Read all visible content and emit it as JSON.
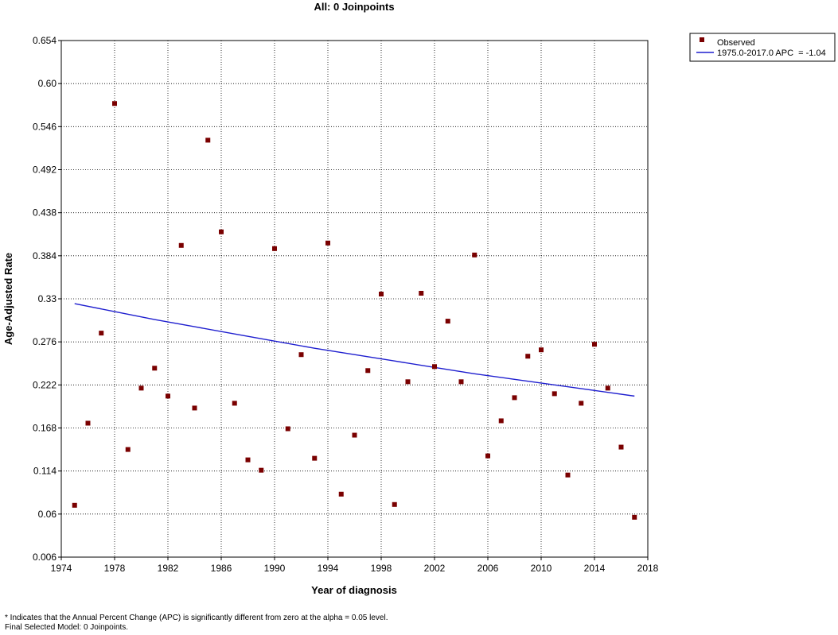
{
  "chart_data": {
    "type": "scatter",
    "title": "All: 0 Joinpoints",
    "xlabel": "Year of diagnosis",
    "ylabel": "Age-Adjusted Rate",
    "xlim": [
      1974,
      2018
    ],
    "ylim": [
      0.006,
      0.654
    ],
    "xticks": [
      "1974",
      "1978",
      "1982",
      "1986",
      "1990",
      "1994",
      "1998",
      "2002",
      "2006",
      "2010",
      "2014",
      "2018"
    ],
    "yticks": [
      "0.006",
      "0.06",
      "0.114",
      "0.168",
      "0.222",
      "0.276",
      "0.33",
      "0.384",
      "0.438",
      "0.492",
      "0.546",
      "0.60",
      "0.654"
    ],
    "grid": true,
    "legend_position": "top-right, outside plot",
    "series": [
      {
        "name": "Observed",
        "kind": "markers",
        "color": "#7a0000",
        "x": [
          1975,
          1976,
          1977,
          1978,
          1979,
          1980,
          1981,
          1982,
          1983,
          1984,
          1985,
          1986,
          1987,
          1988,
          1989,
          1990,
          1991,
          1992,
          1993,
          1994,
          1995,
          1996,
          1997,
          1998,
          1999,
          2000,
          2001,
          2002,
          2003,
          2004,
          2005,
          2006,
          2007,
          2008,
          2009,
          2010,
          2011,
          2012,
          2013,
          2014,
          2015,
          2016,
          2017
        ],
        "y": [
          0.071,
          0.174,
          0.287,
          0.575,
          0.141,
          0.218,
          0.243,
          0.208,
          0.397,
          0.193,
          0.529,
          0.414,
          0.199,
          0.128,
          0.115,
          0.393,
          0.167,
          0.26,
          0.13,
          0.4,
          0.085,
          0.159,
          0.24,
          0.336,
          0.072,
          0.226,
          0.337,
          0.245,
          0.302,
          0.226,
          0.385,
          0.133,
          0.177,
          0.206,
          0.258,
          0.266,
          0.211,
          0.109,
          0.199,
          0.273,
          0.218,
          0.144,
          0.056
        ]
      },
      {
        "name": "1975.0-2017.0 APC  = -1.04",
        "kind": "line",
        "color": "#1f1fcf",
        "x": [
          1975,
          1978,
          1981,
          1984,
          1987,
          1990,
          1993,
          1996,
          1999,
          2002,
          2005,
          2008,
          2011,
          2014,
          2017
        ],
        "y": [
          0.324,
          0.314,
          0.304,
          0.295,
          0.286,
          0.277,
          0.268,
          0.26,
          0.252,
          0.244,
          0.236,
          0.229,
          0.222,
          0.215,
          0.208
        ]
      }
    ]
  },
  "footnotes": [
    "* Indicates that the Annual Percent Change (APC) is significantly different from zero at the alpha = 0.05 level.",
    "Final Selected Model: 0 Joinpoints."
  ]
}
